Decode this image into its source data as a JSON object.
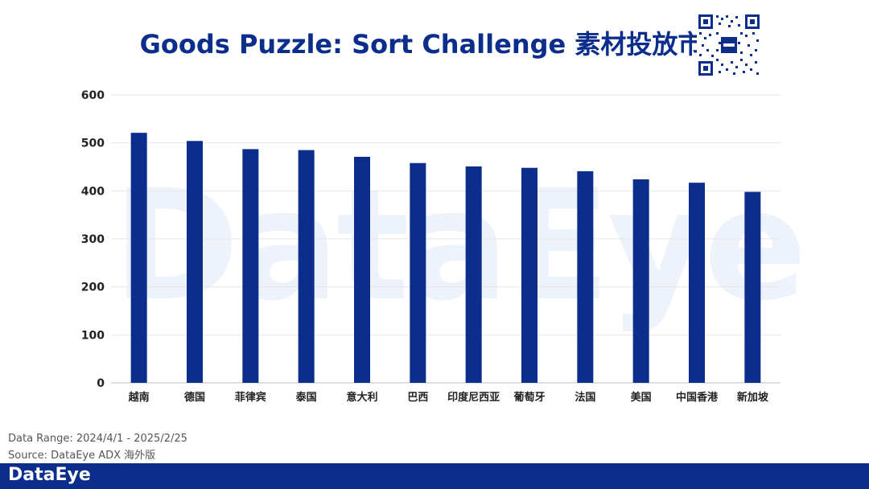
{
  "header": {
    "title": "Goods Puzzle: Sort Challenge 素材投放市场"
  },
  "watermark": "DataEye",
  "chart_data": {
    "type": "bar",
    "categories": [
      "越南",
      "德国",
      "菲律宾",
      "泰国",
      "意大利",
      "巴西",
      "印度尼西亚",
      "葡萄牙",
      "法国",
      "美国",
      "中国香港",
      "新加坡"
    ],
    "values": [
      521,
      504,
      487,
      485,
      471,
      458,
      451,
      448,
      441,
      424,
      417,
      398
    ],
    "title": "Goods Puzzle: Sort Challenge 素材投放市场",
    "xlabel": "",
    "ylabel": "",
    "ylim": [
      0,
      600
    ],
    "yticks": [
      0,
      100,
      200,
      300,
      400,
      500,
      600
    ],
    "grid": true,
    "bar_color": "#0b2d8c"
  },
  "footer": {
    "range": "Data Range: 2024/4/1 - 2025/2/25",
    "source": "Source: DataEye ADX 海外版",
    "brand": "DataEye"
  },
  "colors": {
    "brand": "#0b2d8c",
    "grid": "#e6e6e6"
  }
}
